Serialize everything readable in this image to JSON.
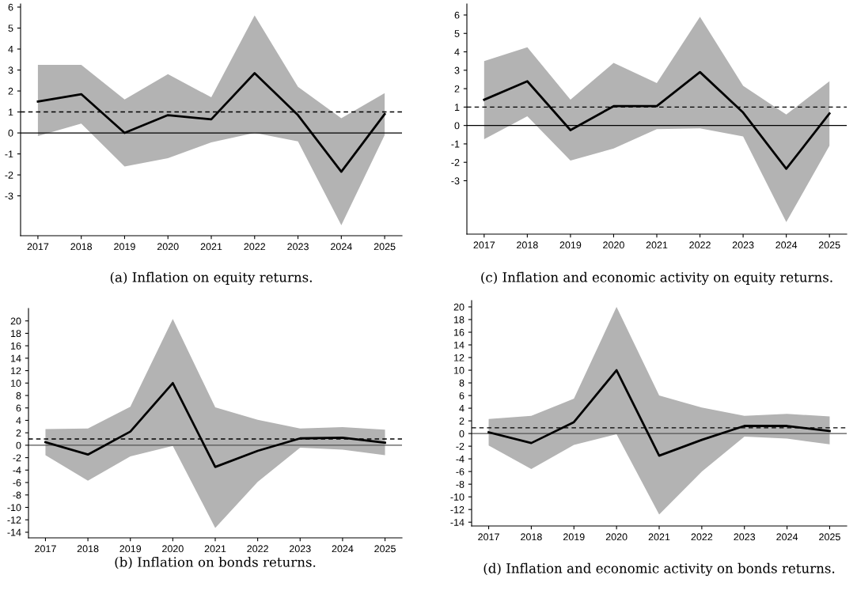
{
  "chart_data": [
    {
      "type": "line",
      "categories": [
        "2017",
        "2018",
        "2019",
        "2020",
        "2021",
        "2022",
        "2023",
        "2024",
        "2025"
      ],
      "ylim": [
        -4.9,
        6.15
      ],
      "yticks": [
        -3,
        -2,
        -1,
        0,
        1,
        2,
        3,
        4,
        5,
        6
      ],
      "grid": false,
      "legend": false,
      "marker": "none",
      "line_style": "solid",
      "series": [
        {
          "color": "#000000",
          "values": [
            1.5,
            1.85,
            0.0,
            0.85,
            0.65,
            2.85,
            0.85,
            -1.85,
            0.9
          ],
          "upper": [
            3.25,
            3.25,
            1.6,
            2.8,
            1.7,
            5.6,
            2.2,
            0.7,
            1.9
          ],
          "lower": [
            -0.15,
            0.45,
            -1.6,
            -1.2,
            -0.45,
            0.0,
            -0.4,
            -4.4,
            -0.1
          ]
        }
      ],
      "ref_lines": [
        {
          "axis": "y",
          "value": 0,
          "color": "#000000",
          "line_style": "solid"
        },
        {
          "axis": "y",
          "value": 1,
          "color": "#000000",
          "line_style": "dashed"
        }
      ],
      "annotations": [
        "(a) Inflation on equity returns."
      ]
    },
    {
      "type": "line",
      "categories": [
        "2017",
        "2018",
        "2019",
        "2020",
        "2021",
        "2022",
        "2023",
        "2024",
        "2025"
      ],
      "ylim": [
        -5.9,
        6.6
      ],
      "yticks": [
        -3,
        -2,
        -1,
        0,
        1,
        2,
        3,
        4,
        5,
        6
      ],
      "grid": false,
      "legend": false,
      "marker": "none",
      "line_style": "solid",
      "series": [
        {
          "color": "#000000",
          "values": [
            1.4,
            2.4,
            -0.25,
            1.05,
            1.05,
            2.9,
            0.7,
            -2.35,
            0.65
          ],
          "upper": [
            3.5,
            4.25,
            1.4,
            3.4,
            2.3,
            5.9,
            2.15,
            0.6,
            2.4
          ],
          "lower": [
            -0.75,
            0.5,
            -1.9,
            -1.25,
            -0.2,
            -0.15,
            -0.6,
            -5.25,
            -1.1
          ]
        }
      ],
      "ref_lines": [
        {
          "axis": "y",
          "value": 0,
          "color": "#000000",
          "line_style": "solid"
        },
        {
          "axis": "y",
          "value": 1,
          "color": "#000000",
          "line_style": "dashed"
        }
      ],
      "annotations": [
        "(c) Inflation and economic activity on equity returns."
      ]
    },
    {
      "type": "line",
      "categories": [
        "2017",
        "2018",
        "2019",
        "2020",
        "2021",
        "2022",
        "2023",
        "2024",
        "2025"
      ],
      "ylim": [
        -14.9,
        22
      ],
      "yticks": [
        -14,
        -12,
        -10,
        -8,
        -6,
        -4,
        -2,
        0,
        2,
        4,
        6,
        8,
        10,
        12,
        14,
        16,
        18,
        20
      ],
      "grid": false,
      "legend": false,
      "marker": "none",
      "line_style": "solid",
      "series": [
        {
          "color": "#000000",
          "values": [
            0.5,
            -1.5,
            2.2,
            10.0,
            -3.5,
            -0.9,
            1.1,
            1.2,
            0.4
          ],
          "upper": [
            2.6,
            2.7,
            6.2,
            20.3,
            6.1,
            4.1,
            2.7,
            2.9,
            2.5
          ],
          "lower": [
            -1.6,
            -5.7,
            -1.8,
            -0.1,
            -13.3,
            -5.9,
            -0.4,
            -0.7,
            -1.6
          ]
        }
      ],
      "ref_lines": [
        {
          "axis": "y",
          "value": 0,
          "color": "#555555",
          "line_style": "solid"
        },
        {
          "axis": "y",
          "value": 1,
          "color": "#000000",
          "line_style": "dashed"
        }
      ],
      "annotations": [
        "(b) Inflation on bonds returns."
      ]
    },
    {
      "type": "line",
      "categories": [
        "2017",
        "2018",
        "2019",
        "2020",
        "2021",
        "2022",
        "2023",
        "2024",
        "2025"
      ],
      "ylim": [
        -14.6,
        21
      ],
      "yticks": [
        -14,
        -12,
        -10,
        -8,
        -6,
        -4,
        -2,
        0,
        2,
        4,
        6,
        8,
        10,
        12,
        14,
        16,
        18,
        20
      ],
      "grid": false,
      "legend": false,
      "marker": "none",
      "line_style": "solid",
      "series": [
        {
          "color": "#000000",
          "values": [
            0.2,
            -1.5,
            1.8,
            10.0,
            -3.5,
            -1.0,
            1.2,
            1.2,
            0.4
          ],
          "upper": [
            2.3,
            2.8,
            5.5,
            20.0,
            6.0,
            4.1,
            2.8,
            3.1,
            2.7
          ],
          "lower": [
            -1.9,
            -5.6,
            -1.8,
            -0.1,
            -12.8,
            -6.0,
            -0.5,
            -0.8,
            -1.7
          ]
        }
      ],
      "ref_lines": [
        {
          "axis": "y",
          "value": 0,
          "color": "#555555",
          "line_style": "solid"
        },
        {
          "axis": "y",
          "value": 0.9,
          "color": "#000000",
          "line_style": "dashed"
        }
      ],
      "annotations": [
        "(d) Inflation and economic activity on bonds returns."
      ]
    }
  ]
}
